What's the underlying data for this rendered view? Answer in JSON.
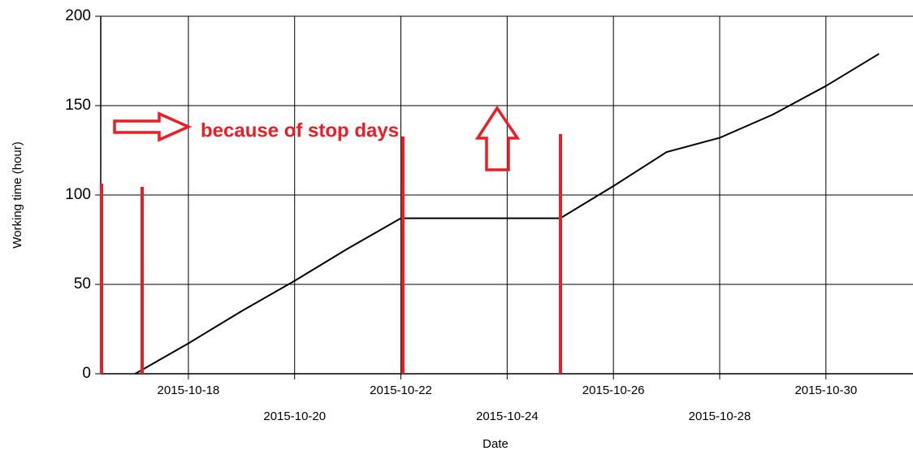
{
  "chart_data": {
    "type": "line",
    "x_label": "Date",
    "y_label": "Working time (hour)",
    "annotation": "because of stop days",
    "x": [
      "2015-10-17",
      "2015-10-18",
      "2015-10-19",
      "2015-10-20",
      "2015-10-21",
      "2015-10-22",
      "2015-10-23",
      "2015-10-24",
      "2015-10-25",
      "2015-10-26",
      "2015-10-27",
      "2015-10-28",
      "2015-10-29",
      "2015-10-30",
      "2015-10-31"
    ],
    "series": [
      {
        "color": "#000000",
        "values": [
          0,
          17,
          35,
          52,
          70,
          87,
          87,
          87,
          87,
          105,
          124,
          132,
          145,
          161,
          179
        ]
      }
    ],
    "xlim": [
      "2015-10-16 08:24",
      "2015-10-31 15:20"
    ],
    "xticks": [
      "2015-10-18",
      "2015-10-20",
      "2015-10-22",
      "2015-10-24",
      "2015-10-26",
      "2015-10-28",
      "2015-10-30"
    ],
    "ylim": [
      0,
      200
    ],
    "yticks": [
      0,
      50,
      100,
      150,
      200
    ],
    "grid": true
  }
}
